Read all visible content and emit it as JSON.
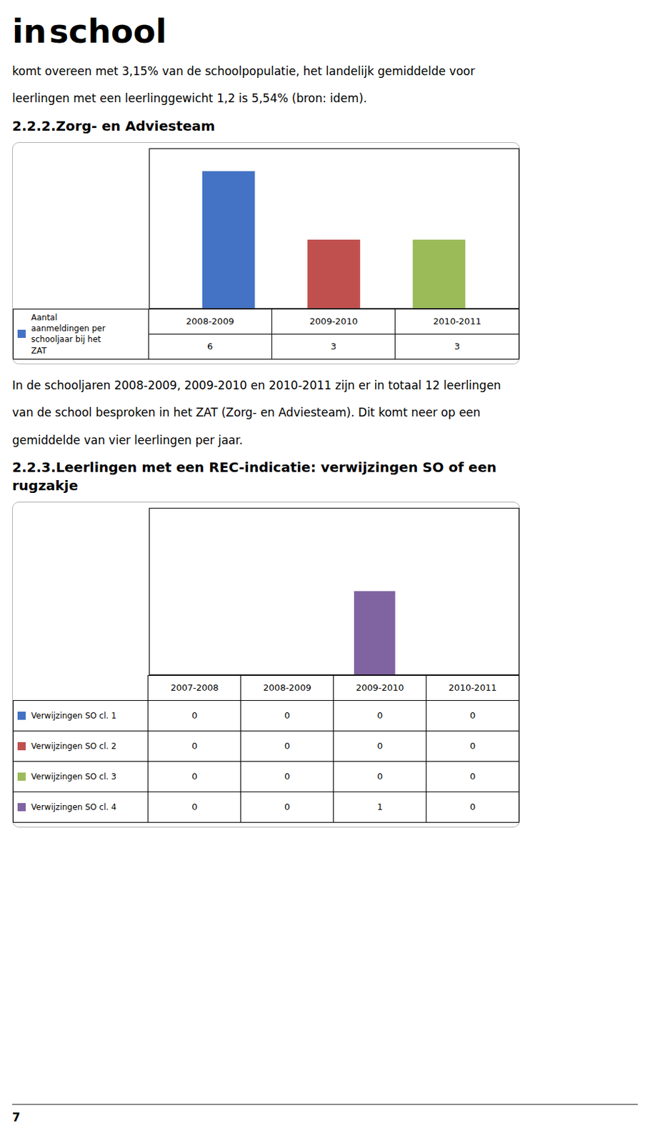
{
  "annotations": [
    "in",
    "school"
  ],
  "caption": "7",
  "chart_data": [
    {
      "type": "bar",
      "annotations": [
        "komt overeen met 3,15% van de schoolpopulatie, het landelijk gemiddelde voor",
        "leerlingen met een leerlinggewicht 1,2 is 5,54% (bron: idem)."
      ],
      "title": "2.2.2.Zorg- en Adviesteam",
      "categories": [
        "2008-2009",
        "2009-2010",
        "2010-2011"
      ],
      "series": [
        {
          "name": "Aantal\naanmeldingen per\nschooljaar bij het\nZAT",
          "values": [
            6,
            3,
            3
          ]
        }
      ],
      "colors": [
        "#4472c4",
        "#c0504d",
        "#9bbb59"
      ],
      "ylim": [
        0,
        7
      ],
      "tick_labels": "x",
      "data_labels": true,
      "grid": false
    },
    {
      "type": "bar",
      "annotations": [
        "In de schooljaren 2008-2009, 2009-2010 en 2010-2011 zijn er in totaal 12 leerlingen",
        "van de school besproken in het ZAT (Zorg- en Adviesteam). Dit komt neer op een",
        "gemiddelde van vier leerlingen per jaar."
      ],
      "title": "2.2.3.Leerlingen met een REC-indicatie: verwijzingen SO of een\nrugzakje",
      "categories": [
        "2007-2008",
        "2008-2009",
        "2009-2010",
        "2010-2011"
      ],
      "series": [
        {
          "name": "Verwijzingen SO cl. 1",
          "color": "#4472c4",
          "values": [
            0,
            0,
            0,
            0
          ]
        },
        {
          "name": "Verwijzingen SO cl. 2",
          "color": "#c0504d",
          "values": [
            0,
            0,
            0,
            0
          ]
        },
        {
          "name": "Verwijzingen SO cl. 3",
          "color": "#9bbb59",
          "values": [
            0,
            0,
            0,
            0
          ]
        },
        {
          "name": "Verwijzingen SO cl. 4",
          "color": "#8064a2",
          "values": [
            0,
            0,
            1,
            0
          ]
        }
      ],
      "ylim": [
        0,
        2
      ],
      "tick_labels": "x",
      "data_labels": true,
      "grid": false
    }
  ]
}
